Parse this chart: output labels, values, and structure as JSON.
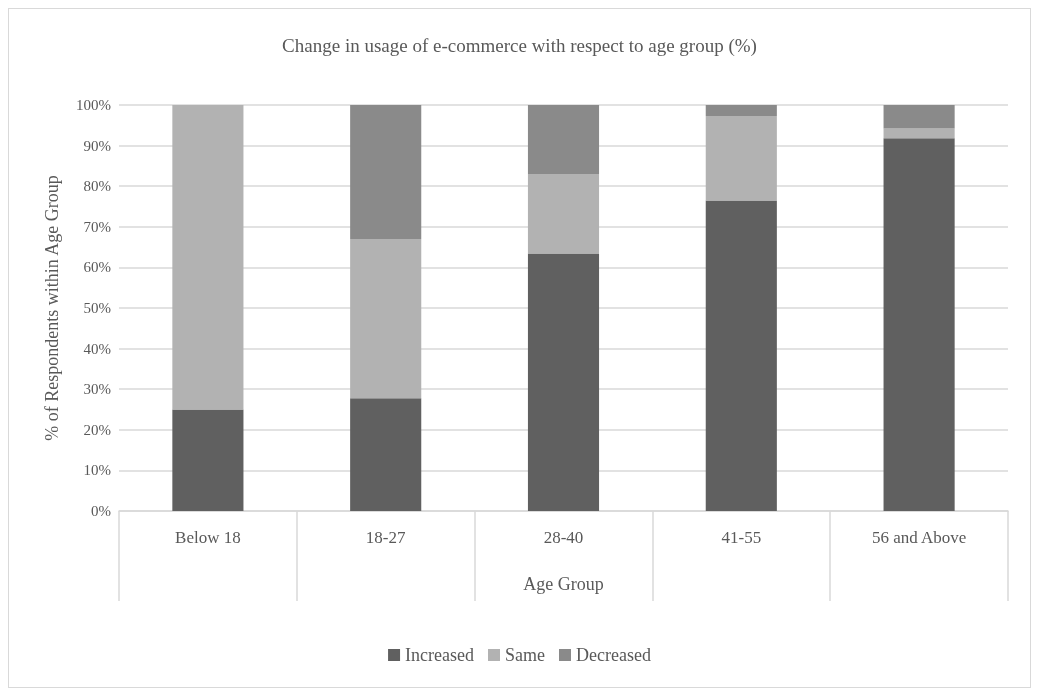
{
  "chart_data": {
    "type": "bar",
    "title": "Change in usage of e-commerce with respect to age group (%)",
    "xlabel": "Age Group",
    "ylabel": "% of Respondents within Age Group",
    "categories": [
      "Below 18",
      "18-27",
      "28-40",
      "41-55",
      "56 and Above"
    ],
    "stacked": true,
    "series": [
      {
        "name": "Increased",
        "color": "#606060",
        "values": [
          25,
          27.8,
          63.4,
          76.5,
          91.8
        ]
      },
      {
        "name": "Same",
        "color": "#b2b2b2",
        "values": [
          75,
          39.2,
          19.6,
          20.8,
          2.4
        ]
      },
      {
        "name": "Decreased",
        "color": "#8a8a8a",
        "values": [
          0,
          33,
          17,
          2.7,
          5.8
        ]
      }
    ],
    "ylim": [
      0,
      100
    ],
    "yticks": [
      {
        "value": 0,
        "label": "0%"
      },
      {
        "value": 10,
        "label": "10%"
      },
      {
        "value": 20,
        "label": "20%"
      },
      {
        "value": 30,
        "label": "30%"
      },
      {
        "value": 40,
        "label": "40%"
      },
      {
        "value": 50,
        "label": "50%"
      },
      {
        "value": 60,
        "label": "60%"
      },
      {
        "value": 70,
        "label": "70%"
      },
      {
        "value": 80,
        "label": "80%"
      },
      {
        "value": 90,
        "label": "90%"
      },
      {
        "value": 100,
        "label": "100%"
      }
    ],
    "grid": "y",
    "legend": "bottom"
  }
}
